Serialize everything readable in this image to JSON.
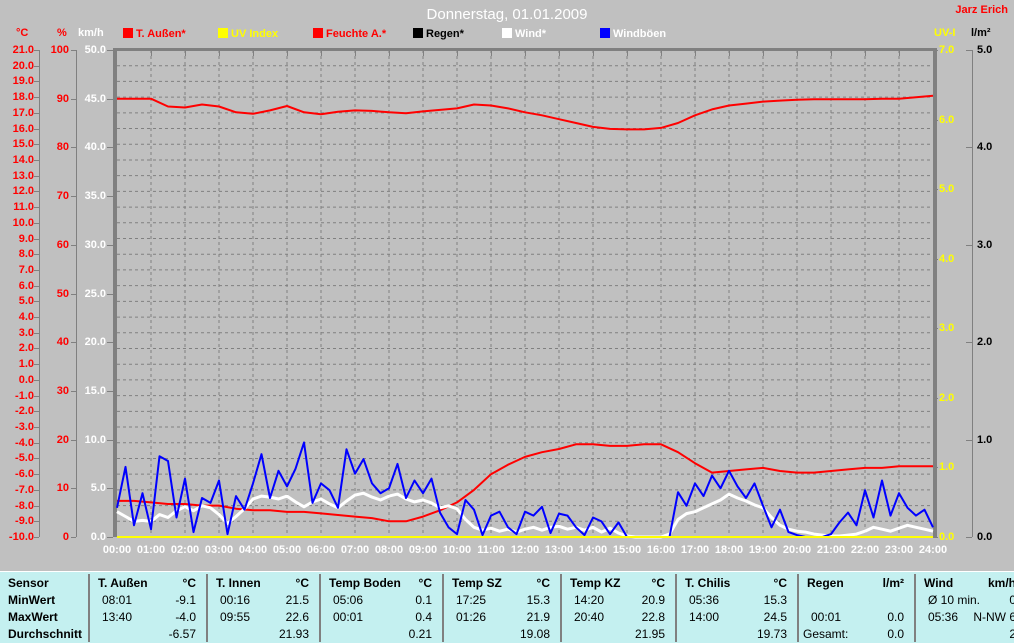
{
  "colors": {
    "background": "#c0c0c0",
    "grid": "#808080",
    "border": "#808080",
    "title_text": "#ffffff",
    "time_text": "#ffffff",
    "table_background": "#c4f0f0",
    "table_text": "#000000",
    "red": "#ff0000",
    "yellow": "#ffff00",
    "white": "#ffffff",
    "blue": "#0000ff",
    "black": "#000000"
  },
  "header": {
    "title": "Donnerstag, 01.01.2009",
    "station_label": "Jarz Erich"
  },
  "legend": [
    {
      "label": "T. Außen*",
      "swatch": "#ff0000",
      "text_color": "#ff0000"
    },
    {
      "label": "UV Index",
      "swatch": "#ffff00",
      "text_color": "#ffff00"
    },
    {
      "label": "Feuchte A.*",
      "swatch": "#ff0000",
      "text_color": "#ff0000"
    },
    {
      "label": "Regen*",
      "swatch": "#000000",
      "text_color": "#000000"
    },
    {
      "label": "Wind*",
      "swatch": "#ffffff",
      "text_color": "#ffffff"
    },
    {
      "label": "Windböen",
      "swatch": "#0000ff",
      "text_color": "#ffffff"
    }
  ],
  "axes": {
    "left": [
      {
        "name": "temperature",
        "header": "°C",
        "color": "#ff0000",
        "scale": "celsius",
        "labels": [
          "21.0",
          "20.0",
          "19.0",
          "18.0",
          "17.0",
          "16.0",
          "15.0",
          "14.0",
          "13.0",
          "12.0",
          "11.0",
          "10.0",
          "9.0",
          "8.0",
          "7.0",
          "6.0",
          "5.0",
          "4.0",
          "3.0",
          "2.0",
          "1.0",
          "0.0",
          "-1.0",
          "-2.0",
          "-3.0",
          "-4.0",
          "-5.0",
          "-6.0",
          "-7.0",
          "-8.0",
          "-9.0",
          "-10.0"
        ]
      },
      {
        "name": "humidity",
        "header": "%",
        "color": "#ff0000",
        "scale": "percent",
        "labels": [
          "100",
          "90",
          "80",
          "70",
          "60",
          "50",
          "40",
          "30",
          "20",
          "10",
          "0"
        ]
      },
      {
        "name": "wind",
        "header": "km/h",
        "color": "#ffffff",
        "scale": "kmh",
        "labels": [
          "50.0",
          "45.0",
          "40.0",
          "35.0",
          "30.0",
          "25.0",
          "20.0",
          "15.0",
          "10.0",
          "5.0",
          "0.0"
        ]
      }
    ],
    "right": [
      {
        "name": "uv-index",
        "header": "UV-I",
        "color": "#ffff00",
        "scale": "uv",
        "labels": [
          "7.0",
          "6.0",
          "5.0",
          "4.0",
          "3.0",
          "2.0",
          "1.0",
          "0.0"
        ]
      },
      {
        "name": "rain",
        "header": "l/m²",
        "color": "#000000",
        "scale": "rain",
        "labels": [
          "5.0",
          "4.0",
          "3.0",
          "2.0",
          "1.0",
          "0.0"
        ]
      }
    ],
    "time_labels": [
      "00:00",
      "01:00",
      "02:00",
      "03:00",
      "04:00",
      "05:00",
      "06:00",
      "07:00",
      "08:00",
      "09:00",
      "10:00",
      "11:00",
      "12:00",
      "13:00",
      "14:00",
      "15:00",
      "16:00",
      "17:00",
      "18:00",
      "19:00",
      "20:00",
      "21:00",
      "22:00",
      "23:00",
      "24:00"
    ]
  },
  "chart_data": {
    "type": "line",
    "title": "Donnerstag, 01.01.2009",
    "x_unit": "hours",
    "x_range": [
      0,
      24
    ],
    "grid": {
      "vertical_every_hours": 1,
      "horizontal_every_celsius": 1,
      "style": "dashed"
    },
    "scales": {
      "celsius": [
        -10,
        21
      ],
      "percent": [
        0,
        100
      ],
      "kmh": [
        0,
        50
      ],
      "uv": [
        0,
        7
      ],
      "rain": [
        0,
        5
      ]
    },
    "series": [
      {
        "name": "Feuchte A.*",
        "scale": "percent",
        "color": "#ff0000",
        "width": 2,
        "step_minutes": 30,
        "values": [
          90.0,
          90.0,
          90.0,
          88.4,
          88.2,
          88.8,
          88.4,
          87.2,
          86.9,
          87.6,
          88.5,
          87.2,
          86.8,
          87.3,
          87.6,
          87.5,
          87.2,
          87.0,
          87.4,
          87.7,
          88.0,
          88.8,
          88.6,
          88.0,
          87.2,
          86.6,
          85.8,
          85.0,
          84.2,
          83.8,
          83.7,
          83.7,
          84.0,
          85.0,
          86.6,
          87.8,
          88.6,
          89.0,
          89.4,
          89.6,
          89.8,
          89.9,
          89.9,
          89.9,
          89.9,
          90.0,
          90.0,
          90.3,
          90.6
        ]
      },
      {
        "name": "T. Außen*",
        "scale": "celsius",
        "color": "#ff0000",
        "width": 2,
        "step_minutes": 30,
        "values": [
          -7.7,
          -7.7,
          -7.8,
          -7.9,
          -7.9,
          -8.0,
          -8.0,
          -8.2,
          -8.3,
          -8.3,
          -8.4,
          -8.4,
          -8.5,
          -8.6,
          -8.7,
          -8.8,
          -9.0,
          -9.0,
          -8.7,
          -8.3,
          -7.8,
          -7.0,
          -6.0,
          -5.4,
          -4.9,
          -4.6,
          -4.4,
          -4.1,
          -4.1,
          -4.2,
          -4.2,
          -4.1,
          -4.1,
          -4.6,
          -5.3,
          -5.9,
          -5.8,
          -5.7,
          -5.6,
          -5.8,
          -5.9,
          -5.9,
          -5.8,
          -5.7,
          -5.6,
          -5.6,
          -5.5,
          -5.5,
          -5.5
        ]
      },
      {
        "name": "Regen*",
        "scale": "rain",
        "color": "#000000",
        "width": 2,
        "constant": 0
      },
      {
        "name": "Wind*",
        "scale": "kmh",
        "color": "#ffffff",
        "width": 3,
        "step_minutes": 15,
        "values": [
          2.6,
          2.1,
          1.6,
          1.7,
          1.6,
          2.3,
          2.0,
          2.7,
          3.1,
          2.7,
          3.2,
          3.0,
          2.3,
          1.4,
          2.1,
          2.9,
          3.9,
          4.2,
          4.1,
          3.9,
          4.2,
          3.6,
          3.1,
          3.6,
          3.9,
          3.4,
          3.0,
          3.7,
          4.3,
          4.5,
          4.1,
          3.8,
          4.2,
          4.4,
          3.9,
          3.6,
          3.8,
          3.5,
          3.0,
          3.2,
          2.9,
          1.8,
          1.0,
          0.7,
          0.9,
          0.6,
          0.8,
          0.5,
          0.8,
          1.0,
          0.7,
          1.0,
          1.1,
          0.8,
          1.0,
          0.7,
          1.0,
          0.5,
          0.9,
          0.4,
          0.1,
          0.0,
          0.0,
          0.0,
          0.0,
          0.3,
          1.8,
          2.4,
          2.6,
          3.0,
          3.4,
          3.8,
          4.4,
          4.0,
          3.7,
          3.3,
          3.0,
          2.0,
          1.2,
          0.8,
          0.6,
          0.5,
          0.3,
          0.2,
          0.1,
          0.1,
          0.2,
          0.3,
          0.6,
          1.0,
          0.8,
          0.6,
          0.9,
          1.2,
          1.0,
          0.8,
          0.6
        ]
      },
      {
        "name": "Windböen",
        "scale": "kmh",
        "color": "#0000ff",
        "width": 2,
        "step_minutes": 15,
        "values": [
          3.0,
          7.2,
          1.2,
          4.5,
          0.8,
          8.3,
          7.8,
          2.0,
          6.0,
          0.5,
          4.0,
          3.5,
          5.8,
          0.3,
          4.2,
          2.8,
          5.5,
          8.5,
          4.0,
          6.8,
          5.2,
          7.0,
          9.7,
          3.5,
          5.5,
          4.8,
          3.0,
          9.0,
          6.5,
          8.0,
          5.5,
          4.5,
          5.0,
          7.5,
          4.0,
          5.8,
          4.5,
          6.0,
          2.5,
          1.0,
          0.3,
          3.8,
          2.8,
          0.2,
          2.2,
          2.6,
          1.0,
          0.3,
          2.6,
          2.2,
          3.1,
          0.4,
          2.4,
          2.2,
          1.0,
          0.2,
          2.0,
          1.6,
          0.3,
          1.5,
          0.0,
          0.0,
          0.0,
          0.0,
          0.0,
          0.0,
          4.6,
          3.2,
          5.5,
          4.2,
          6.3,
          5.0,
          6.8,
          5.2,
          4.0,
          5.5,
          3.2,
          1.0,
          2.8,
          0.5,
          0.2,
          0.0,
          0.0,
          0.0,
          0.3,
          1.5,
          2.5,
          1.2,
          4.8,
          2.0,
          5.8,
          2.2,
          4.5,
          3.0,
          2.2,
          2.8,
          1.0
        ]
      },
      {
        "name": "UV Index",
        "scale": "uv",
        "color": "#ffff00",
        "width": 2,
        "constant": 0
      }
    ]
  },
  "table": {
    "row_labels": [
      "Sensor",
      "MinWert",
      "MaxWert",
      "Durchschnitt"
    ],
    "columns": [
      {
        "name": "T. Außen",
        "unit": "°C",
        "rows": [
          [
            "08:01",
            "-9.1"
          ],
          [
            "13:40",
            "-4.0"
          ],
          [
            "",
            "-6.57"
          ]
        ]
      },
      {
        "name": "T. Innen",
        "unit": "°C",
        "rows": [
          [
            "00:16",
            "21.5"
          ],
          [
            "09:55",
            "22.6"
          ],
          [
            "",
            "21.93"
          ]
        ]
      },
      {
        "name": "Temp Boden",
        "unit": "°C",
        "rows": [
          [
            "05:06",
            "0.1"
          ],
          [
            "00:01",
            "0.4"
          ],
          [
            "",
            "0.21"
          ]
        ]
      },
      {
        "name": "Temp SZ",
        "unit": "°C",
        "rows": [
          [
            "17:25",
            "15.3"
          ],
          [
            "01:26",
            "21.9"
          ],
          [
            "",
            "19.08"
          ]
        ]
      },
      {
        "name": "Temp KZ",
        "unit": "°C",
        "rows": [
          [
            "14:20",
            "20.9"
          ],
          [
            "20:40",
            "22.8"
          ],
          [
            "",
            "21.95"
          ]
        ]
      },
      {
        "name": "T. Chilis",
        "unit": "°C",
        "rows": [
          [
            "05:36",
            "15.3"
          ],
          [
            "14:00",
            "24.5"
          ],
          [
            "",
            "19.73"
          ]
        ]
      },
      {
        "name": "Regen",
        "unit": "l/m²",
        "rows": [
          [
            "",
            ""
          ],
          [
            "00:01",
            "0.0"
          ],
          [
            "Gesamt:",
            "0.0"
          ]
        ]
      },
      {
        "name": "Wind",
        "unit": "km/h",
        "rows": [
          [
            "Ø 10 min.",
            "0"
          ],
          [
            "05:36",
            "N-NW 6"
          ],
          [
            "",
            "2"
          ]
        ]
      }
    ]
  }
}
